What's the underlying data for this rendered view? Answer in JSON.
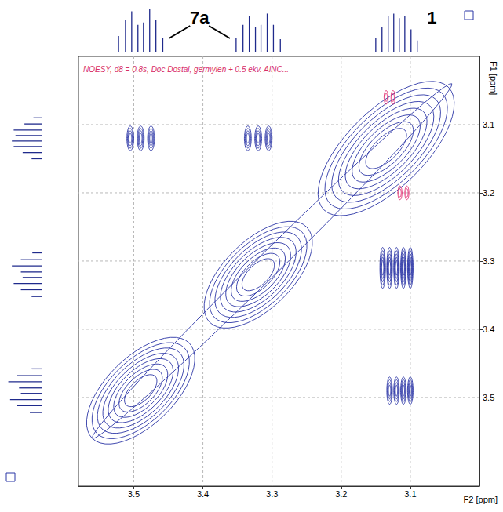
{
  "chart_data": {
    "type": "contour",
    "title": "NOESY, d8 = 0.8s, Doc Dostal, germylen + 0.5 ekv. AlNC...",
    "x_label": "F2 [ppm]",
    "y_label": "F1 [ppm]",
    "xlim": [
      3.58,
      3.0
    ],
    "ylim": [
      3.63,
      3.0
    ],
    "xticks": [
      3.5,
      3.4,
      3.3,
      3.2,
      3.1
    ],
    "yticks": [
      3.1,
      3.2,
      3.3,
      3.4,
      3.5
    ],
    "grid": true,
    "contours": [
      {
        "color": "#2b36a6",
        "diagonal": [
          {
            "center": 3.3,
            "along": 0.26,
            "across": 0.012,
            "levels": 1
          },
          {
            "center": 3.49,
            "along": 0.07,
            "across": 0.035,
            "levels": 8
          },
          {
            "center": 3.32,
            "along": 0.07,
            "across": 0.035,
            "levels": 8
          },
          {
            "center": 3.135,
            "along": 0.09,
            "across": 0.04,
            "levels": 8
          }
        ],
        "cross": [
          {
            "f2_lines": [
              3.505,
              3.49,
              3.475
            ],
            "f1": 3.12,
            "w2": 0.005,
            "w1": 0.018,
            "levels": 4
          },
          {
            "f2_lines": [
              3.335,
              3.32,
              3.305
            ],
            "f1": 3.12,
            "w2": 0.005,
            "w1": 0.018,
            "levels": 4
          },
          {
            "f2_lines": [
              3.14,
              3.13,
              3.12,
              3.11,
              3.1
            ],
            "f1": 3.31,
            "w2": 0.004,
            "w1": 0.03,
            "levels": 5
          },
          {
            "f2_lines": [
              3.13,
              3.12,
              3.11,
              3.1
            ],
            "f1": 3.49,
            "w2": 0.004,
            "w1": 0.02,
            "levels": 4
          }
        ]
      },
      {
        "color": "#e0206a",
        "diagonal": [],
        "cross": [
          {
            "f2_lines": [
              3.135,
              3.125
            ],
            "f1": 3.06,
            "w2": 0.003,
            "w1": 0.01,
            "levels": 2
          },
          {
            "f2_lines": [
              3.115,
              3.105
            ],
            "f1": 3.2,
            "w2": 0.003,
            "w1": 0.01,
            "levels": 2
          }
        ]
      }
    ],
    "projection": {
      "color": "#1f2a8c",
      "positions": [
        3.522,
        3.512,
        3.503,
        3.494,
        3.486,
        3.477,
        3.468,
        3.458,
        3.352,
        3.342,
        3.333,
        3.324,
        3.316,
        3.307,
        3.298,
        3.288,
        3.15,
        3.141,
        3.132,
        3.124,
        3.116,
        3.108,
        3.099,
        3.09
      ],
      "heights": [
        0.35,
        0.7,
        0.9,
        0.6,
        0.65,
        0.95,
        0.7,
        0.3,
        0.3,
        0.6,
        0.8,
        0.55,
        0.6,
        0.85,
        0.6,
        0.28,
        0.3,
        0.55,
        0.8,
        0.85,
        0.75,
        0.8,
        0.5,
        0.25
      ]
    },
    "annotations": [
      {
        "text": "7a",
        "points_to": [
          3.49,
          3.32
        ]
      },
      {
        "text": "1",
        "points_to": [
          3.12
        ]
      }
    ]
  }
}
